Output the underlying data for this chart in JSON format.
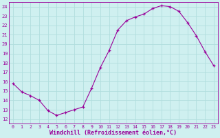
{
  "x": [
    0,
    1,
    2,
    3,
    4,
    5,
    6,
    7,
    8,
    9,
    10,
    11,
    12,
    13,
    14,
    15,
    16,
    17,
    18,
    19,
    20,
    21,
    22,
    23
  ],
  "y": [
    15.8,
    14.9,
    14.5,
    14.0,
    12.9,
    12.4,
    12.7,
    13.0,
    13.3,
    15.3,
    17.5,
    19.3,
    21.5,
    22.5,
    22.9,
    23.2,
    23.8,
    24.1,
    24.0,
    23.5,
    22.3,
    20.9,
    19.2,
    17.7
  ],
  "line_color": "#990099",
  "marker": "+",
  "marker_color": "#990099",
  "bg_color": "#cff0f0",
  "grid_color": "#b0dede",
  "xlabel": "Windchill (Refroidissement éolien,°C)",
  "xlabel_color": "#990099",
  "tick_color": "#990099",
  "ylim_min": 11.5,
  "ylim_max": 24.5,
  "yticks": [
    12,
    13,
    14,
    15,
    16,
    17,
    18,
    19,
    20,
    21,
    22,
    23,
    24
  ],
  "xlim_min": -0.5,
  "xlim_max": 23.5,
  "xticks": [
    0,
    1,
    2,
    3,
    4,
    5,
    6,
    7,
    8,
    9,
    10,
    11,
    12,
    13,
    14,
    15,
    16,
    17,
    18,
    19,
    20,
    21,
    22,
    23
  ]
}
